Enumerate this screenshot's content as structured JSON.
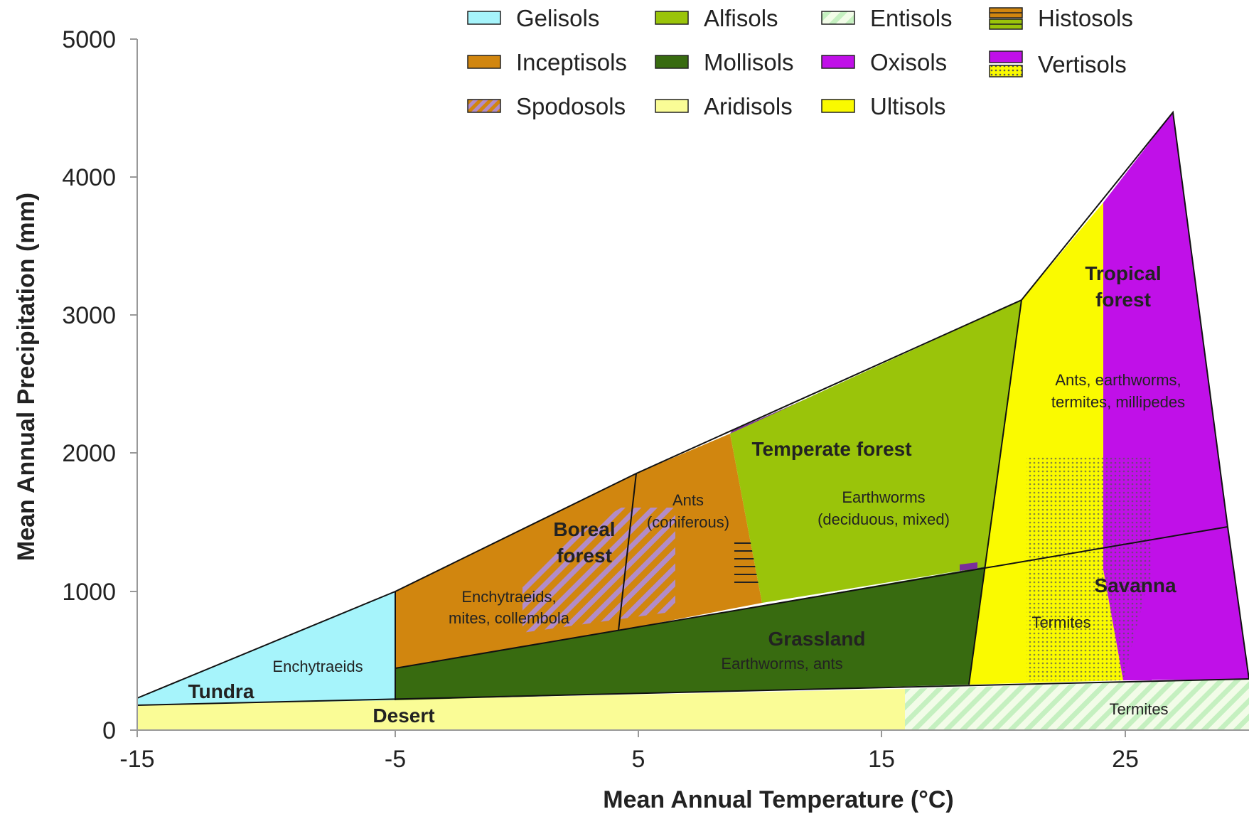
{
  "axes": {
    "x_title": "Mean Annual Temperature (°C)",
    "y_title": "Mean Annual Precipitation (mm)",
    "x_ticks": [
      "-15",
      "-5",
      "5",
      "15",
      "25"
    ],
    "y_ticks": [
      "0",
      "1000",
      "2000",
      "3000",
      "4000",
      "5000"
    ]
  },
  "legend": [
    {
      "label": "Gelisols",
      "color": "#a6f4fb",
      "pattern": "solid"
    },
    {
      "label": "Alfisols",
      "color": "#9ac40a",
      "pattern": "solid"
    },
    {
      "label": "Entisols",
      "color": "#c5f0c0",
      "pattern": "hatch-light"
    },
    {
      "label": "Histosols",
      "color": "#d1860f",
      "pattern": "hlines"
    },
    {
      "label": "Inceptisols",
      "color": "#d1860f",
      "pattern": "solid"
    },
    {
      "label": "Mollisols",
      "color": "#386b10",
      "pattern": "solid"
    },
    {
      "label": "Oxisols",
      "color": "#c010e8",
      "pattern": "solid"
    },
    {
      "label": "Vertisols",
      "color": "#c010e8",
      "pattern": "dots"
    },
    {
      "label": "Spodosols",
      "color": "#b28cc8",
      "pattern": "hatch-purple"
    },
    {
      "label": "Aridisols",
      "color": "#fafc96",
      "pattern": "solid"
    },
    {
      "label": "Ultisols",
      "color": "#fafa00",
      "pattern": "solid"
    }
  ],
  "biomes": {
    "tundra": "Tundra",
    "desert": "Desert",
    "boreal_line1": "Boreal",
    "boreal_line2": "forest",
    "temperate": "Temperate forest",
    "grassland": "Grassland",
    "tropical_line1": "Tropical",
    "tropical_line2": "forest",
    "savanna": "Savanna"
  },
  "fauna": {
    "tundra": "Enchytraeids",
    "boreal_line1": "Enchytraeids,",
    "boreal_line2": "mites, collembola",
    "ants_line1": "Ants",
    "ants_line2": "(coniferous)",
    "temperate_line1": "Earthworms",
    "temperate_line2": "(deciduous, mixed)",
    "grassland": "Earthworms, ants",
    "tropical_line1": "Ants, earthworms,",
    "tropical_line2": "termites, millipedes",
    "savanna": "Termites",
    "desert": "Termites"
  },
  "colors": {
    "gelisols": "#a6f4fb",
    "inceptisols": "#d1860f",
    "alfisols": "#9ac40a",
    "mollisols": "#386b10",
    "aridisols": "#fafc96",
    "entisols": "#c5f0c0",
    "oxisols": "#c010e8",
    "ultisols": "#fafa00",
    "spodosols": "#b28cc8"
  }
}
